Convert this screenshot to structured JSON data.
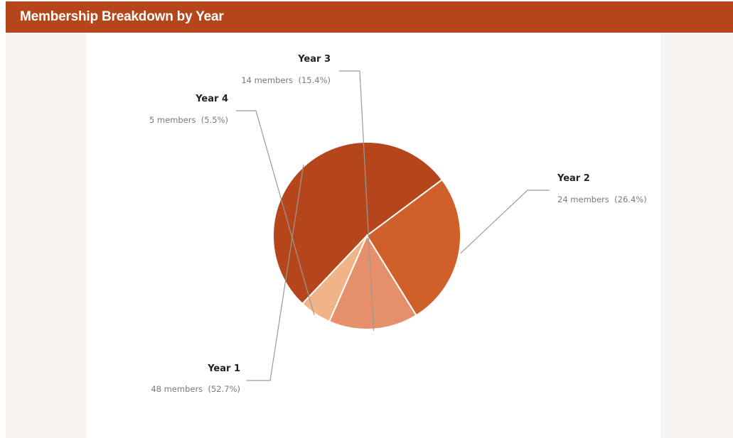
{
  "header": {
    "title": "Membership Breakdown by Year"
  },
  "colors": {
    "header_bg": "#b5461c",
    "slice_year1": "#b5461c",
    "slice_year2": "#d0602a",
    "slice_year3": "#e5906a",
    "slice_year4": "#f0b488",
    "leader_line": "#999999"
  },
  "chart_data": {
    "type": "pie",
    "categories": [
      "Year 1",
      "Year 2",
      "Year 3",
      "Year 4"
    ],
    "values": [
      48,
      24,
      14,
      5
    ],
    "details": [
      "48 members  (52.7%)",
      "24 members  (26.4%)",
      "14 members  (15.4%)",
      "5 members  (5.5%)"
    ],
    "title": "",
    "legend": "none"
  }
}
